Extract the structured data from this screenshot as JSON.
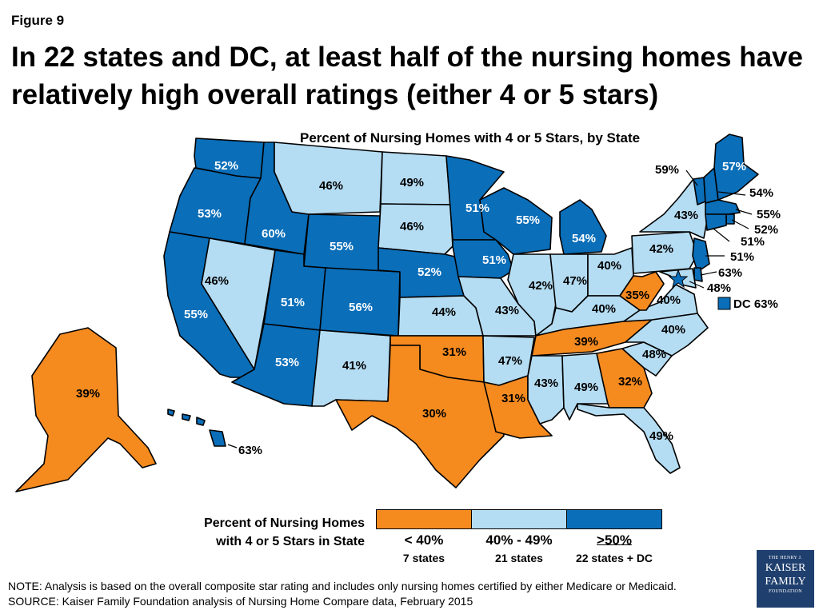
{
  "figure_label": "Figure 9",
  "headline": "In 22 states and DC, at least half of the nursing homes have relatively high overall ratings (either 4 or 5 stars)",
  "map_title": "Percent of Nursing Homes with 4 or 5 Stars, by State",
  "colors": {
    "low": "#f58a1f",
    "mid": "#b4dcf2",
    "high": "#0a6eb9",
    "border": "#000000"
  },
  "states": [
    {
      "id": "WA",
      "value": "52%",
      "bin": "high"
    },
    {
      "id": "OR",
      "value": "53%",
      "bin": "high"
    },
    {
      "id": "CA",
      "value": "55%",
      "bin": "high"
    },
    {
      "id": "ID",
      "value": "60%",
      "bin": "high"
    },
    {
      "id": "NV",
      "value": "46%",
      "bin": "mid"
    },
    {
      "id": "MT",
      "value": "46%",
      "bin": "mid"
    },
    {
      "id": "WY",
      "value": "55%",
      "bin": "high"
    },
    {
      "id": "UT",
      "value": "51%",
      "bin": "high"
    },
    {
      "id": "AZ",
      "value": "53%",
      "bin": "high"
    },
    {
      "id": "CO",
      "value": "56%",
      "bin": "high"
    },
    {
      "id": "NM",
      "value": "41%",
      "bin": "mid"
    },
    {
      "id": "ND",
      "value": "49%",
      "bin": "mid"
    },
    {
      "id": "SD",
      "value": "46%",
      "bin": "mid"
    },
    {
      "id": "NE",
      "value": "52%",
      "bin": "high"
    },
    {
      "id": "KS",
      "value": "44%",
      "bin": "mid"
    },
    {
      "id": "OK",
      "value": "31%",
      "bin": "low"
    },
    {
      "id": "TX",
      "value": "30%",
      "bin": "low"
    },
    {
      "id": "MN",
      "value": "51%",
      "bin": "high"
    },
    {
      "id": "IA",
      "value": "51%",
      "bin": "high"
    },
    {
      "id": "MO",
      "value": "43%",
      "bin": "mid"
    },
    {
      "id": "AR",
      "value": "47%",
      "bin": "mid"
    },
    {
      "id": "LA",
      "value": "31%",
      "bin": "low"
    },
    {
      "id": "WI",
      "value": "55%",
      "bin": "high"
    },
    {
      "id": "IL",
      "value": "42%",
      "bin": "mid"
    },
    {
      "id": "MI",
      "value": "54%",
      "bin": "high"
    },
    {
      "id": "IN",
      "value": "47%",
      "bin": "mid"
    },
    {
      "id": "OH",
      "value": "40%",
      "bin": "mid"
    },
    {
      "id": "KY",
      "value": "40%",
      "bin": "mid"
    },
    {
      "id": "TN",
      "value": "39%",
      "bin": "low"
    },
    {
      "id": "MS",
      "value": "43%",
      "bin": "mid"
    },
    {
      "id": "AL",
      "value": "49%",
      "bin": "mid"
    },
    {
      "id": "GA",
      "value": "32%",
      "bin": "low"
    },
    {
      "id": "FL",
      "value": "49%",
      "bin": "mid"
    },
    {
      "id": "SC",
      "value": "48%",
      "bin": "mid"
    },
    {
      "id": "NC",
      "value": "40%",
      "bin": "mid"
    },
    {
      "id": "VA",
      "value": "40%",
      "bin": "mid"
    },
    {
      "id": "WV",
      "value": "35%",
      "bin": "low"
    },
    {
      "id": "PA",
      "value": "42%",
      "bin": "mid"
    },
    {
      "id": "NY",
      "value": "43%",
      "bin": "mid"
    },
    {
      "id": "VT",
      "value": "59%",
      "bin": "high"
    },
    {
      "id": "NH",
      "value": "54%",
      "bin": "high"
    },
    {
      "id": "ME",
      "value": "57%",
      "bin": "high"
    },
    {
      "id": "MA",
      "value": "55%",
      "bin": "high"
    },
    {
      "id": "RI",
      "value": "52%",
      "bin": "high"
    },
    {
      "id": "CT",
      "value": "51%",
      "bin": "high"
    },
    {
      "id": "NJ",
      "value": "51%",
      "bin": "high"
    },
    {
      "id": "DE",
      "value": "63%",
      "bin": "high"
    },
    {
      "id": "MD",
      "value": "48%",
      "bin": "mid"
    },
    {
      "id": "AK",
      "value": "39%",
      "bin": "low"
    },
    {
      "id": "HI",
      "value": "63%",
      "bin": "high"
    }
  ],
  "dc": {
    "id": "DC",
    "label": "DC 63%",
    "value": "63%",
    "bin": "high"
  },
  "legend": {
    "title_line1": "Percent of Nursing Homes",
    "title_line2": "with 4 or 5 Stars in State",
    "items": [
      {
        "range": "< 40%",
        "count": "7 states",
        "bin": "low"
      },
      {
        "range": "40% - 49%",
        "count": "21 states",
        "bin": "mid"
      },
      {
        "range": ">50%",
        "count": "22 states + DC",
        "bin": "high"
      }
    ]
  },
  "note": "NOTE: Analysis is based on the overall composite star rating and includes only nursing homes certified by either Medicare or Medicaid.",
  "source": "SOURCE: Kaiser Family Foundation analysis of Nursing Home Compare data, February 2015",
  "logo": {
    "line1": "THE HENRY J.",
    "line2": "KAISER",
    "line3": "FAMILY",
    "line4": "FOUNDATION"
  }
}
